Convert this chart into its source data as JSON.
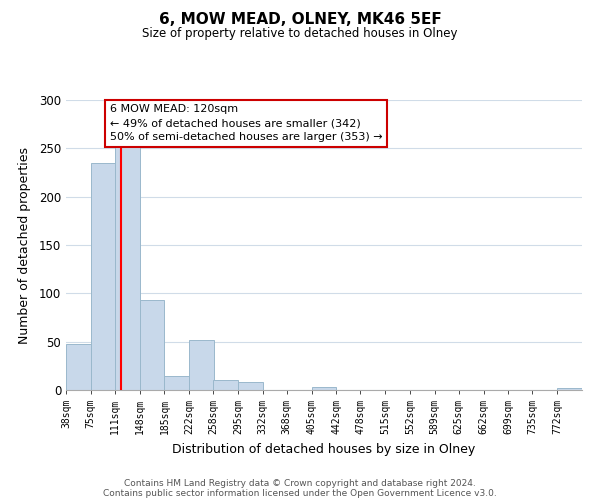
{
  "title": "6, MOW MEAD, OLNEY, MK46 5EF",
  "subtitle": "Size of property relative to detached houses in Olney",
  "xlabel": "Distribution of detached houses by size in Olney",
  "ylabel": "Number of detached properties",
  "footer_line1": "Contains HM Land Registry data © Crown copyright and database right 2024.",
  "footer_line2": "Contains public sector information licensed under the Open Government Licence v3.0.",
  "bar_edges": [
    38,
    75,
    111,
    148,
    185,
    222,
    258,
    295,
    332,
    368,
    405,
    442,
    478,
    515,
    552,
    589,
    625,
    662,
    699,
    735,
    772
  ],
  "bar_heights": [
    48,
    235,
    252,
    93,
    14,
    52,
    10,
    8,
    0,
    0,
    3,
    0,
    0,
    0,
    0,
    0,
    0,
    0,
    0,
    0,
    2
  ],
  "bar_color": "#c8d8ea",
  "bar_edgecolor": "#9ab8cc",
  "red_line_x": 120,
  "annotation_title": "6 MOW MEAD: 120sqm",
  "annotation_line1": "← 49% of detached houses are smaller (342)",
  "annotation_line2": "50% of semi-detached houses are larger (353) →",
  "ylim": [
    0,
    300
  ],
  "yticks": [
    0,
    50,
    100,
    150,
    200,
    250,
    300
  ],
  "tick_labels": [
    "38sqm",
    "75sqm",
    "111sqm",
    "148sqm",
    "185sqm",
    "222sqm",
    "258sqm",
    "295sqm",
    "332sqm",
    "368sqm",
    "405sqm",
    "442sqm",
    "478sqm",
    "515sqm",
    "552sqm",
    "589sqm",
    "625sqm",
    "662sqm",
    "699sqm",
    "735sqm",
    "772sqm"
  ],
  "background_color": "#ffffff",
  "grid_color": "#d0dce8"
}
